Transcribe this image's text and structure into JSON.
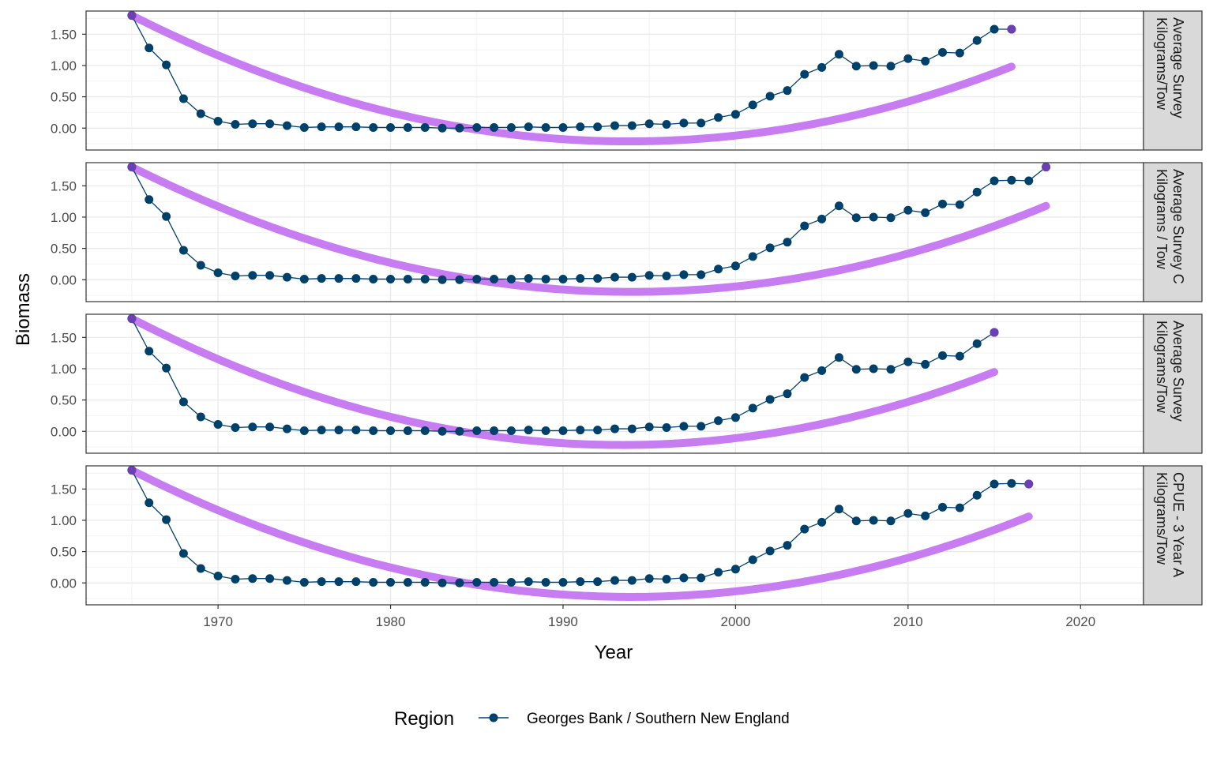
{
  "chart_data": {
    "type": "line",
    "xlabel": "Year",
    "ylabel": "Biomass",
    "xlim": [
      1962.35,
      2023.65
    ],
    "ylim": [
      -0.35,
      1.87
    ],
    "x_ticks": [
      1970,
      1980,
      1990,
      2000,
      2010,
      2020
    ],
    "y_ticks": [
      0,
      0.5,
      1,
      1.5
    ],
    "y_tick_labels": [
      "0.00",
      "0.50",
      "1.00",
      "1.50"
    ],
    "grid": true,
    "legend": {
      "position": "bottom",
      "title": "Region",
      "entries": [
        {
          "label": "Georges Bank / Southern New England",
          "color": "#00416b"
        }
      ]
    },
    "colors": {
      "series": "#00416b",
      "trend": "#c77cf1",
      "trend_endpoint": "#6c3fb5",
      "strip_bg": "#d9d9d9",
      "grid": "#ebebeb"
    },
    "base_series": {
      "x": [
        1965,
        1966,
        1967,
        1968,
        1969,
        1970,
        1971,
        1972,
        1973,
        1974,
        1975,
        1976,
        1977,
        1978,
        1979,
        1980,
        1981,
        1982,
        1983,
        1984,
        1985,
        1986,
        1987,
        1988,
        1989,
        1990,
        1991,
        1992,
        1993,
        1994,
        1995,
        1996,
        1997,
        1998,
        1999,
        2000,
        2001,
        2002,
        2003,
        2004,
        2005,
        2006,
        2007,
        2008,
        2009,
        2010,
        2011,
        2012,
        2013,
        2014,
        2015
      ],
      "y": [
        1.8,
        1.28,
        1.01,
        0.47,
        0.23,
        0.11,
        0.06,
        0.07,
        0.07,
        0.04,
        0.01,
        0.02,
        0.02,
        0.02,
        0.01,
        0.01,
        0.01,
        0.01,
        0.0,
        0.0,
        0.01,
        0.01,
        0.01,
        0.02,
        0.01,
        0.01,
        0.02,
        0.02,
        0.04,
        0.04,
        0.07,
        0.06,
        0.08,
        0.08,
        0.17,
        0.22,
        0.37,
        0.51,
        0.6,
        0.86,
        0.97,
        1.18,
        0.99,
        1.0,
        0.99,
        1.11,
        1.07,
        1.21,
        1.2,
        1.4,
        1.58
      ]
    },
    "panels": [
      {
        "strip": [
          "Average Survey",
          "Kilograms/Tow"
        ],
        "extra": {
          "x": [
            2016
          ],
          "y": [
            1.58
          ]
        },
        "trend": {
          "a": 1.8,
          "b": -0.1397,
          "c": 0.002425
        }
      },
      {
        "strip": [
          "Average Survey C",
          "Kilograms / Tow"
        ],
        "extra": {
          "x": [
            2016,
            2017,
            2018
          ],
          "y": [
            1.59,
            1.58,
            1.8
          ]
        },
        "trend": {
          "a": 1.8,
          "b": -0.1377,
          "c": 0.002377
        }
      },
      {
        "strip": [
          "Average Survey",
          "Kilograms/Tow"
        ],
        "extra": {
          "x": [],
          "y": []
        },
        "trend": {
          "a": 1.8,
          "b": -0.1421,
          "c": 0.002501
        }
      },
      {
        "strip": [
          "CPUE - 3 Year A",
          "Kilograms/Tow"
        ],
        "extra": {
          "x": [
            2016,
            2017
          ],
          "y": [
            1.59,
            1.58
          ]
        },
        "trend": {
          "a": 1.8,
          "b": -0.1398,
          "c": 0.002415
        }
      }
    ]
  }
}
